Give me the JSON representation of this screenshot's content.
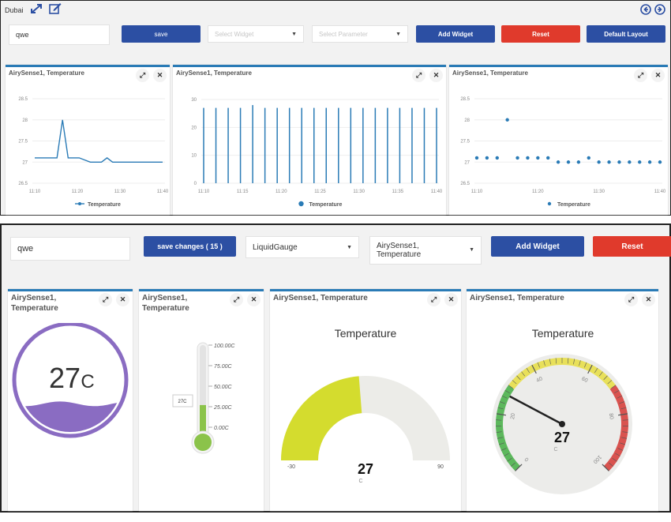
{
  "top": {
    "city": "Dubai",
    "name_input_value": "qwe",
    "save_label": "save",
    "widget_select_placeholder": "Select Widget",
    "parameter_select_placeholder": "Select Parameter",
    "add_widget_label": "Add Widget",
    "reset_label": "Reset",
    "default_layout_label": "Default Layout",
    "widgets": [
      {
        "title": "AirySense1, Temperature",
        "legend": "Temperature"
      },
      {
        "title": "AirySense1, Temperature",
        "legend": "Temperature"
      },
      {
        "title": "AirySense1, Temperature",
        "legend": "Temperature"
      }
    ]
  },
  "bottom": {
    "name_input_value": "qwe",
    "save_changes_label": "save changes ( 15 )",
    "widget_select_value": "LiquidGauge",
    "parameter_select_value": "AirySense1, Temperature",
    "add_widget_label": "Add Widget",
    "reset_label": "Reset",
    "widgets": [
      {
        "title": "AirySense1, Temperature",
        "value": "27",
        "unit": "C",
        "level": 0.27
      },
      {
        "title": "AirySense1, Temperature",
        "value_label": "27C",
        "ticks": [
          "100.00C",
          "75.00C",
          "50.00C",
          "25.00C",
          "0.00C"
        ],
        "level": 0.27
      },
      {
        "title": "AirySense1, Temperature",
        "heading": "Temperature",
        "value": "27",
        "unit": "C",
        "min": "-30",
        "max": "90",
        "level": 0.475
      },
      {
        "title": "AirySense1, Temperature",
        "heading": "Temperature",
        "value": "27",
        "unit": "C",
        "ticks": [
          "0",
          "20",
          "40",
          "60",
          "80",
          "100"
        ],
        "level": 0.27
      }
    ]
  },
  "chart_data": [
    {
      "type": "line",
      "ylim": [
        26.5,
        28.5
      ],
      "yticks": [
        "28.5",
        "28",
        "27.5",
        "27",
        "26.5"
      ],
      "xticks": [
        "11:10",
        "11:20",
        "11:30",
        "11:40"
      ],
      "series": [
        {
          "name": "Temperature",
          "values": [
            27.1,
            27.1,
            27.1,
            27.1,
            27.1,
            28.0,
            27.1,
            27.1,
            27.1,
            27.05,
            27.0,
            27.0,
            27.0,
            27.1,
            27.0,
            27.0,
            27.0,
            27.0,
            27.0,
            27.0,
            27.0,
            27.0,
            27.0,
            27.0
          ]
        }
      ]
    },
    {
      "type": "bar",
      "ylim": [
        0,
        30
      ],
      "yticks": [
        "30",
        "20",
        "10",
        "0"
      ],
      "xticks": [
        "11:10",
        "11:15",
        "11:20",
        "11:25",
        "11:30",
        "11:35",
        "11:40"
      ],
      "series": [
        {
          "name": "Temperature",
          "values": [
            27,
            27,
            27,
            27,
            28,
            27,
            27,
            27,
            27,
            27,
            27,
            27,
            27,
            27,
            27,
            27,
            27,
            27,
            27,
            27
          ]
        }
      ]
    },
    {
      "type": "scatter",
      "ylim": [
        26.5,
        28.5
      ],
      "yticks": [
        "28.5",
        "28",
        "27.5",
        "27",
        "26.5"
      ],
      "xticks": [
        "11:10",
        "11:20",
        "11:30",
        "11:40"
      ],
      "series": [
        {
          "name": "Temperature",
          "values": [
            27.1,
            27.1,
            27.1,
            28.0,
            27.1,
            27.1,
            27.1,
            27.1,
            27.0,
            27.0,
            27.0,
            27.1,
            27.0,
            27.0,
            27.0,
            27.0,
            27.0,
            27.0,
            27.0
          ]
        }
      ]
    }
  ]
}
